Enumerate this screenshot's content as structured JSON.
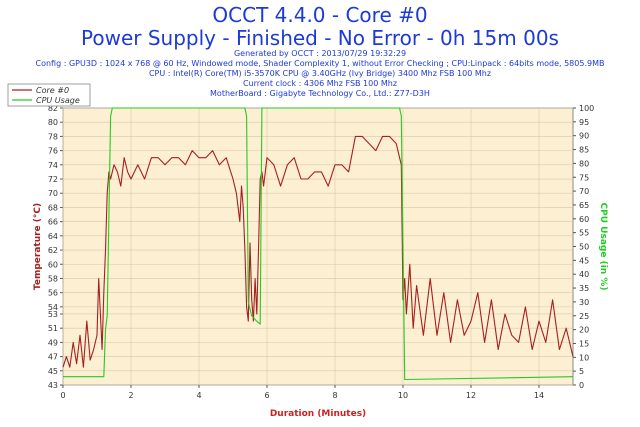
{
  "header": {
    "title_line1": "OCCT 4.4.0 - Core #0",
    "title_line2": "Power Supply - Finished - No Error - 0h 15m 00s",
    "info": [
      "Generated by OCCT : 2013/07/29 19:32:29",
      "Config : GPU3D : 1024 x 768 @ 60 Hz, Windowed mode, Shader Complexity 1, without Error Checking ; CPU:Linpack : 64bits mode, 5805.9MB",
      "CPU : Intel(R) Core(TM) i5-3570K CPU @ 3.40GHz (Ivy Bridge) 3400 Mhz FSB 100 Mhz",
      "Current clock : 4306 Mhz FSB 100 Mhz",
      "MotherBoard : Gigabyte Technology Co., Ltd.: Z77-D3H"
    ]
  },
  "colors": {
    "core": "#a52121",
    "cpu_usage": "#22cc22",
    "axis_left": "#a52121",
    "axis_right": "#22cc22",
    "axis_x": "#cc2222",
    "plot_bg": "#fcefd2",
    "grid": "#d9c8a8"
  },
  "chart_data": {
    "type": "line",
    "xlabel": "Duration (Minutes)",
    "ylabel": "Temperature (°C)",
    "ylabel_right": "CPU Usage (in %)",
    "xlim": [
      0,
      15
    ],
    "ylim": [
      43,
      82
    ],
    "ylim_right": [
      0,
      100
    ],
    "x_ticks": [
      0,
      2,
      4,
      6,
      8,
      10,
      12,
      14
    ],
    "y_ticks": [
      43,
      45,
      47,
      49,
      51,
      53,
      54,
      56,
      58,
      60,
      62,
      64,
      66,
      68,
      70,
      72,
      74,
      76,
      78,
      80,
      82
    ],
    "y_ticks_right": [
      0,
      5,
      10,
      15,
      20,
      25,
      30,
      35,
      40,
      45,
      50,
      55,
      60,
      65,
      70,
      75,
      80,
      85,
      90,
      95,
      100
    ],
    "grid": true,
    "legend_position": "top-left",
    "series": [
      {
        "name": "Core #0",
        "axis": "left",
        "x": [
          0,
          0.1,
          0.2,
          0.3,
          0.4,
          0.5,
          0.6,
          0.7,
          0.8,
          0.9,
          1.0,
          1.05,
          1.1,
          1.15,
          1.2,
          1.25,
          1.3,
          1.35,
          1.4,
          1.5,
          1.6,
          1.7,
          1.8,
          1.9,
          2.0,
          2.2,
          2.4,
          2.6,
          2.8,
          3.0,
          3.2,
          3.4,
          3.6,
          3.8,
          4.0,
          4.2,
          4.4,
          4.6,
          4.8,
          5.0,
          5.1,
          5.2,
          5.25,
          5.3,
          5.35,
          5.4,
          5.45,
          5.5,
          5.55,
          5.6,
          5.65,
          5.7,
          5.75,
          5.8,
          5.85,
          5.9,
          6.0,
          6.2,
          6.4,
          6.6,
          6.8,
          7.0,
          7.2,
          7.4,
          7.6,
          7.8,
          8.0,
          8.2,
          8.4,
          8.6,
          8.8,
          9.0,
          9.2,
          9.4,
          9.6,
          9.8,
          9.95,
          10.0,
          10.05,
          10.1,
          10.2,
          10.3,
          10.4,
          10.6,
          10.8,
          11.0,
          11.2,
          11.4,
          11.6,
          11.8,
          12.0,
          12.2,
          12.4,
          12.6,
          12.8,
          13.0,
          13.2,
          13.4,
          13.6,
          13.8,
          14.0,
          14.2,
          14.4,
          14.6,
          14.8,
          15.0
        ],
        "values": [
          45.5,
          47,
          45.5,
          49,
          46,
          50,
          45.5,
          52,
          46.5,
          48,
          50,
          58,
          53,
          48,
          56,
          62,
          70,
          73,
          72,
          74,
          73,
          71,
          75,
          73,
          72,
          74,
          72,
          75,
          75,
          74,
          75,
          75,
          74,
          76,
          75,
          75,
          76,
          74,
          75,
          72,
          70,
          66,
          71,
          68,
          62,
          54,
          52,
          63,
          55,
          52,
          58,
          53,
          62,
          72,
          73,
          71,
          75,
          74,
          71,
          74,
          75,
          72,
          72,
          73,
          73,
          71,
          74,
          74,
          73,
          78,
          78,
          77,
          76,
          78,
          78,
          77,
          74,
          55,
          58,
          53,
          60,
          51,
          57,
          50,
          58,
          50,
          56,
          49,
          55,
          50,
          52,
          56,
          49,
          55,
          48,
          53,
          50,
          49,
          54,
          48,
          52,
          49,
          55,
          48,
          51,
          47
        ]
      },
      {
        "name": "CPU Usage",
        "axis": "right",
        "x": [
          0,
          1.2,
          1.25,
          1.3,
          1.4,
          1.45,
          5.35,
          5.4,
          5.45,
          5.55,
          5.7,
          5.8,
          5.85,
          9.9,
          9.95,
          10.0,
          10.05,
          15.0
        ],
        "values": [
          3,
          3,
          20,
          25,
          97,
          100,
          100,
          97,
          30,
          25,
          23,
          22,
          100,
          100,
          97,
          50,
          2,
          3
        ]
      }
    ]
  }
}
